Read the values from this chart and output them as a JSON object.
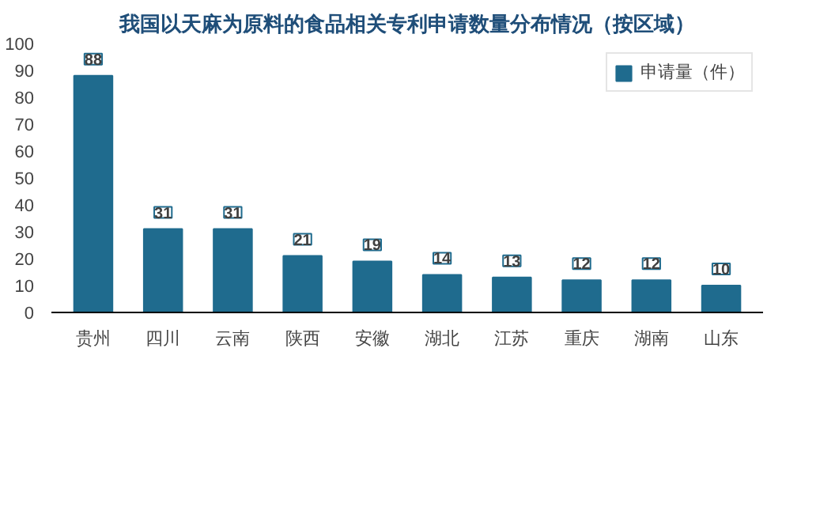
{
  "chart_data": {
    "type": "bar",
    "title": "我国以天麻为原料的食品相关专利申请数量分布情况（按区域）",
    "categories": [
      "贵州",
      "四川",
      "云南",
      "陕西",
      "安徽",
      "湖北",
      "江苏",
      "重庆",
      "湖南",
      "山东"
    ],
    "series": [
      {
        "name": "申请量（件）",
        "color": "#1f6b8e",
        "values": [
          88,
          31,
          31,
          21,
          19,
          14,
          13,
          12,
          12,
          10
        ]
      }
    ],
    "ylim": [
      0,
      100
    ],
    "yticks": [
      0,
      10,
      20,
      30,
      40,
      50,
      60,
      70,
      80,
      90,
      100
    ],
    "grid": false,
    "legend": "top right",
    "data_labels": true
  }
}
